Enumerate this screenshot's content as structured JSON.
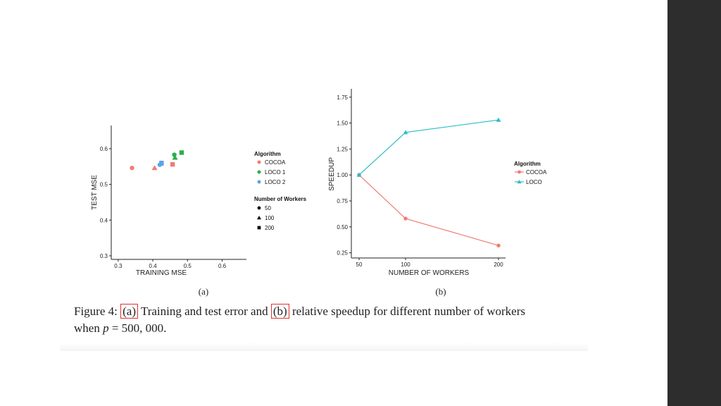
{
  "caption": {
    "prefix": "Figure 4:",
    "ref_a": "(a)",
    "middle": "Training and test error and",
    "ref_b": "(b)",
    "suffix": "relative speedup for different number of workers",
    "line2_a": "when",
    "line2_var": "p",
    "line2_b": "= 500, 000."
  },
  "colors": {
    "cocoa": "#f07c74",
    "loco1": "#27b04b",
    "loco2": "#5ea3e8",
    "loco": "#2bbcc8"
  },
  "chart_data": [
    {
      "type": "scatter",
      "sublabel": "(a)",
      "xlabel": "TRAINING MSE",
      "ylabel": "TEST MSE",
      "xlim": [
        0.28,
        0.67
      ],
      "ylim": [
        0.29,
        0.665
      ],
      "xticks": [
        "0.3",
        "0.4",
        "0.5",
        "0.6"
      ],
      "yticks": [
        "0.3",
        "0.4",
        "0.5",
        "0.6"
      ],
      "legend_algorithm": {
        "title": "Algorithm",
        "entries": [
          "COCOA",
          "LOCO 1",
          "LOCO 2"
        ]
      },
      "legend_workers": {
        "title": "Number of Workers",
        "entries": [
          "50",
          "100",
          "200"
        ]
      },
      "points": [
        {
          "algorithm": "COCOA",
          "workers": "50",
          "x": 0.34,
          "y": 0.546
        },
        {
          "algorithm": "COCOA",
          "workers": "100",
          "x": 0.405,
          "y": 0.546
        },
        {
          "algorithm": "COCOA",
          "workers": "200",
          "x": 0.457,
          "y": 0.556
        },
        {
          "algorithm": "LOCO 1",
          "workers": "50",
          "x": 0.462,
          "y": 0.583
        },
        {
          "algorithm": "LOCO 1",
          "workers": "100",
          "x": 0.464,
          "y": 0.575
        },
        {
          "algorithm": "LOCO 1",
          "workers": "200",
          "x": 0.483,
          "y": 0.589
        },
        {
          "algorithm": "LOCO 2",
          "workers": "50",
          "x": 0.42,
          "y": 0.555
        },
        {
          "algorithm": "LOCO 2",
          "workers": "100",
          "x": 0.423,
          "y": 0.558
        },
        {
          "algorithm": "LOCO 2",
          "workers": "200",
          "x": 0.425,
          "y": 0.56
        }
      ]
    },
    {
      "type": "line",
      "sublabel": "(b)",
      "xlabel": "NUMBER OF WORKERS",
      "ylabel": "SPEEDUP",
      "categories": [
        "50",
        "100",
        "200"
      ],
      "x": [
        50,
        100,
        200
      ],
      "ylim": [
        0.2,
        1.83
      ],
      "yticks": [
        "0.25",
        "0.50",
        "0.75",
        "1.00",
        "1.25",
        "1.50",
        "1.75"
      ],
      "legend": {
        "title": "Algorithm",
        "entries": [
          "COCOA",
          "LOCO"
        ]
      },
      "series": [
        {
          "name": "COCOA",
          "values": [
            1.0,
            0.58,
            0.32
          ]
        },
        {
          "name": "LOCO",
          "values": [
            1.0,
            1.41,
            1.53
          ]
        }
      ]
    }
  ]
}
